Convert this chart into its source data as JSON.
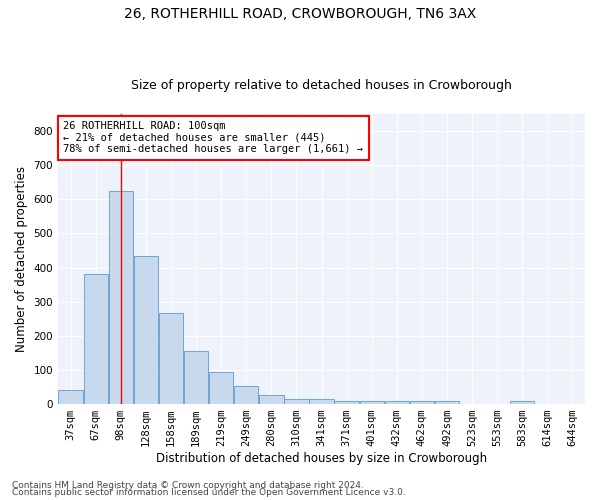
{
  "title1": "26, ROTHERHILL ROAD, CROWBOROUGH, TN6 3AX",
  "title2": "Size of property relative to detached houses in Crowborough",
  "xlabel": "Distribution of detached houses by size in Crowborough",
  "ylabel": "Number of detached properties",
  "categories": [
    "37sqm",
    "67sqm",
    "98sqm",
    "128sqm",
    "158sqm",
    "189sqm",
    "219sqm",
    "249sqm",
    "280sqm",
    "310sqm",
    "341sqm",
    "371sqm",
    "401sqm",
    "432sqm",
    "462sqm",
    "492sqm",
    "523sqm",
    "553sqm",
    "583sqm",
    "614sqm",
    "644sqm"
  ],
  "values": [
    42,
    380,
    625,
    435,
    268,
    155,
    95,
    52,
    28,
    15,
    15,
    10,
    10,
    10,
    10,
    8,
    0,
    0,
    8,
    0,
    0
  ],
  "bar_color": "#c8d9ee",
  "bar_edge_color": "#5b9bd5",
  "red_line_x": 2,
  "annotation_line1": "26 ROTHERHILL ROAD: 100sqm",
  "annotation_line2": "← 21% of detached houses are smaller (445)",
  "annotation_line3": "78% of semi-detached houses are larger (1,661) →",
  "annotation_box_color": "white",
  "annotation_box_edge_color": "red",
  "red_line_color": "red",
  "footnote1": "Contains HM Land Registry data © Crown copyright and database right 2024.",
  "footnote2": "Contains public sector information licensed under the Open Government Licence v3.0.",
  "ylim": [
    0,
    850
  ],
  "yticks": [
    0,
    100,
    200,
    300,
    400,
    500,
    600,
    700,
    800
  ],
  "background_color": "#eef2fa",
  "grid_color": "white",
  "title1_fontsize": 10,
  "title2_fontsize": 9,
  "axis_label_fontsize": 8.5,
  "tick_fontsize": 7.5,
  "annotation_fontsize": 7.5,
  "footnote_fontsize": 6.5
}
